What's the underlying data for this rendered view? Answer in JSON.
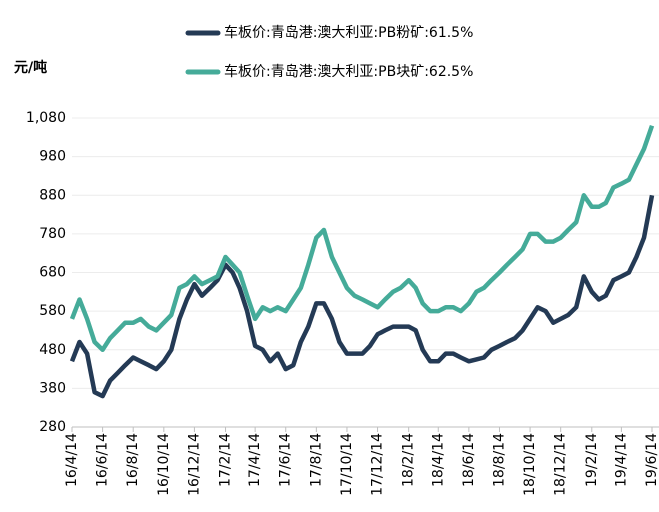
{
  "chart_data": {
    "type": "line",
    "y_label": "元/吨",
    "x": [
      "16/4/14",
      "16/4/29",
      "16/5/14",
      "16/5/29",
      "16/6/14",
      "16/6/29",
      "16/7/14",
      "16/7/29",
      "16/8/14",
      "16/8/29",
      "16/9/14",
      "16/9/29",
      "16/10/14",
      "16/10/29",
      "16/11/14",
      "16/11/29",
      "16/12/14",
      "16/12/29",
      "17/1/14",
      "17/1/29",
      "17/2/14",
      "17/2/28",
      "17/3/14",
      "17/3/29",
      "17/4/14",
      "17/4/29",
      "17/5/14",
      "17/5/29",
      "17/6/14",
      "17/6/29",
      "17/7/14",
      "17/7/29",
      "17/8/14",
      "17/8/29",
      "17/9/14",
      "17/9/29",
      "17/10/14",
      "17/10/29",
      "17/11/14",
      "17/11/29",
      "17/12/14",
      "17/12/29",
      "18/1/14",
      "18/1/29",
      "18/2/14",
      "18/2/28",
      "18/3/14",
      "18/3/29",
      "18/4/14",
      "18/4/29",
      "18/5/14",
      "18/5/29",
      "18/6/14",
      "18/6/29",
      "18/7/14",
      "18/7/29",
      "18/8/14",
      "18/8/29",
      "18/9/14",
      "18/9/29",
      "18/10/14",
      "18/10/29",
      "18/11/14",
      "18/11/29",
      "18/12/14",
      "18/12/29",
      "19/1/14",
      "19/1/29",
      "19/2/14",
      "19/2/28",
      "19/3/14",
      "19/3/29",
      "19/4/14",
      "19/4/29",
      "19/5/14",
      "19/5/29",
      "19/6/14"
    ],
    "series": [
      {
        "name": "车板价:青岛港:澳大利亚:PB粉矿:61.5%",
        "color": "#243a55",
        "values": [
          450,
          500,
          470,
          370,
          360,
          400,
          420,
          440,
          460,
          450,
          440,
          430,
          450,
          480,
          560,
          610,
          650,
          620,
          640,
          660,
          700,
          680,
          640,
          580,
          490,
          480,
          450,
          470,
          430,
          440,
          500,
          540,
          600,
          600,
          560,
          500,
          470,
          470,
          470,
          490,
          520,
          530,
          540,
          540,
          540,
          530,
          480,
          450,
          450,
          470,
          470,
          460,
          450,
          455,
          460,
          480,
          490,
          500,
          510,
          530,
          560,
          590,
          580,
          550,
          560,
          570,
          590,
          670,
          630,
          610,
          620,
          660,
          670,
          680,
          720,
          770,
          880
        ]
      },
      {
        "name": "车板价:青岛港:澳大利亚:PB块矿:62.5%",
        "color": "#45ab99",
        "values": [
          560,
          610,
          560,
          500,
          480,
          510,
          530,
          550,
          550,
          560,
          540,
          530,
          550,
          570,
          640,
          650,
          670,
          650,
          660,
          670,
          720,
          700,
          680,
          620,
          560,
          590,
          580,
          590,
          580,
          610,
          640,
          700,
          770,
          790,
          720,
          680,
          640,
          620,
          610,
          600,
          590,
          610,
          630,
          640,
          660,
          640,
          600,
          580,
          580,
          590,
          590,
          580,
          600,
          630,
          640,
          660,
          680,
          700,
          720,
          740,
          780,
          780,
          760,
          760,
          770,
          790,
          810,
          880,
          850,
          850,
          860,
          900,
          910,
          920,
          960,
          1000,
          1060
        ]
      }
    ],
    "xlim": [
      "16/4/14",
      "19/6/14"
    ],
    "xticks": [
      "16/4/14",
      "16/6/14",
      "16/8/14",
      "16/10/14",
      "16/12/14",
      "17/2/14",
      "17/4/14",
      "17/6/14",
      "17/8/14",
      "17/10/14",
      "17/12/14",
      "18/2/14",
      "18/4/14",
      "18/6/14",
      "18/8/14",
      "18/10/14",
      "18/12/14",
      "19/2/14",
      "19/4/14",
      "19/6/14"
    ],
    "ylim": [
      280,
      1080
    ],
    "yticks": [
      280,
      380,
      480,
      580,
      680,
      780,
      880,
      980,
      {
        "value": 1080,
        "label": "1,080"
      }
    ],
    "grid": true
  }
}
